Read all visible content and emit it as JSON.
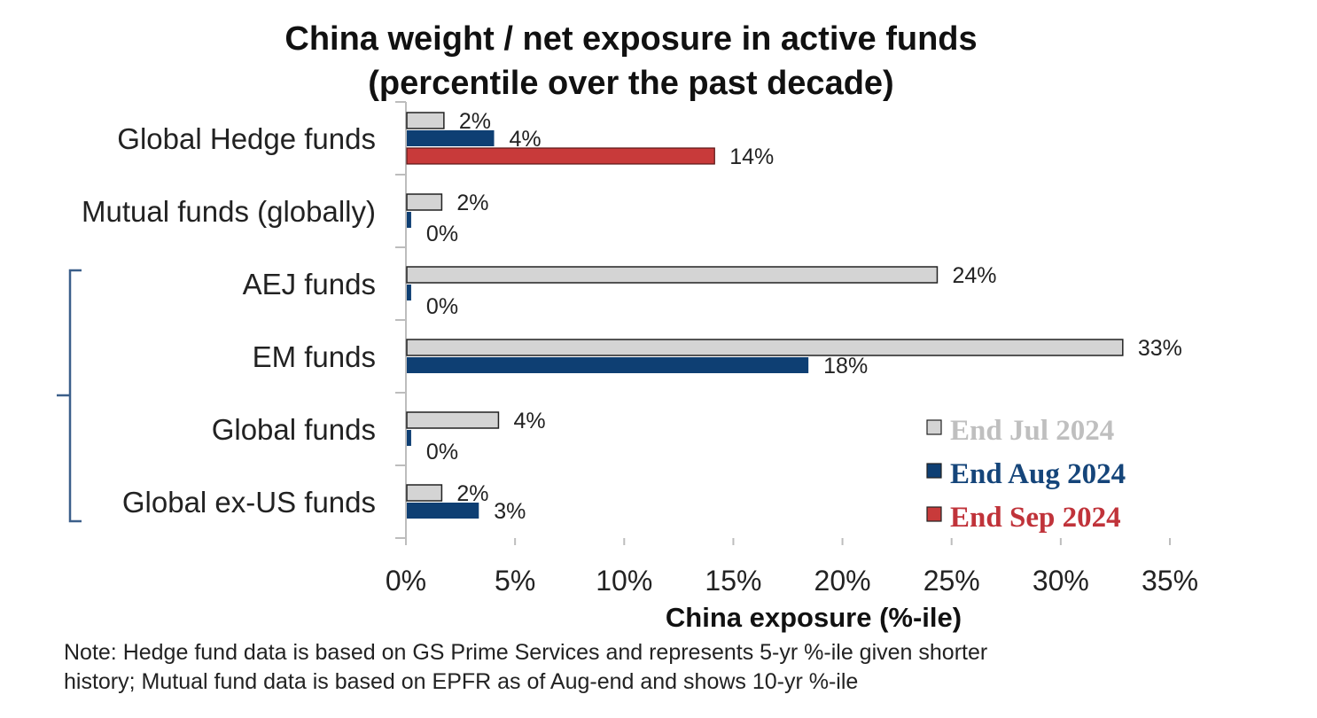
{
  "chart_data": {
    "type": "bar",
    "orientation": "horizontal",
    "title_lines": [
      "China weight / net exposure in active funds",
      "(percentile over the past decade)"
    ],
    "xlabel": "China exposure  (%-ile)",
    "ylabel": "",
    "xlim": [
      0,
      35
    ],
    "x_ticks": [
      0,
      5,
      10,
      15,
      20,
      25,
      30,
      35
    ],
    "x_tick_labels": [
      "0%",
      "5%",
      "10%",
      "15%",
      "20%",
      "25%",
      "30%",
      "35%"
    ],
    "categories": [
      "Global Hedge funds",
      "Mutual funds (globally)",
      "AEJ funds",
      "EM funds",
      "Global funds",
      "Global ex-US funds"
    ],
    "series": [
      {
        "name": "End Jul 2024",
        "color": "#d4d4d4",
        "text_color": "#bfbfbf",
        "values": [
          1.7,
          1.6,
          24.3,
          32.8,
          4.2,
          1.6
        ],
        "labels": [
          "2%",
          "2%",
          "24%",
          "33%",
          "4%",
          "2%"
        ]
      },
      {
        "name": "End Aug 2024",
        "color": "#0e3f73",
        "text_color": "#15457a",
        "values": [
          4.0,
          0.2,
          0.2,
          18.4,
          0.2,
          3.3
        ],
        "labels": [
          "4%",
          "0%",
          "0%",
          "18%",
          "0%",
          "3%"
        ]
      },
      {
        "name": "End Sep 2024",
        "color": "#c83a3a",
        "text_color": "#c0333a",
        "values": [
          14.1,
          null,
          null,
          null,
          null,
          null
        ],
        "labels": [
          "14%",
          null,
          null,
          null,
          null,
          null
        ]
      }
    ],
    "legend_position": "bottom-right",
    "grid": false
  },
  "note": {
    "line1": "Note: Hedge  fund data is based on GS Prime  Services and represents 5-yr %-ile given shorter",
    "line2": "history; Mutual fund data is based on EPFR   as of Aug-end and shows 10-yr %-ile"
  }
}
